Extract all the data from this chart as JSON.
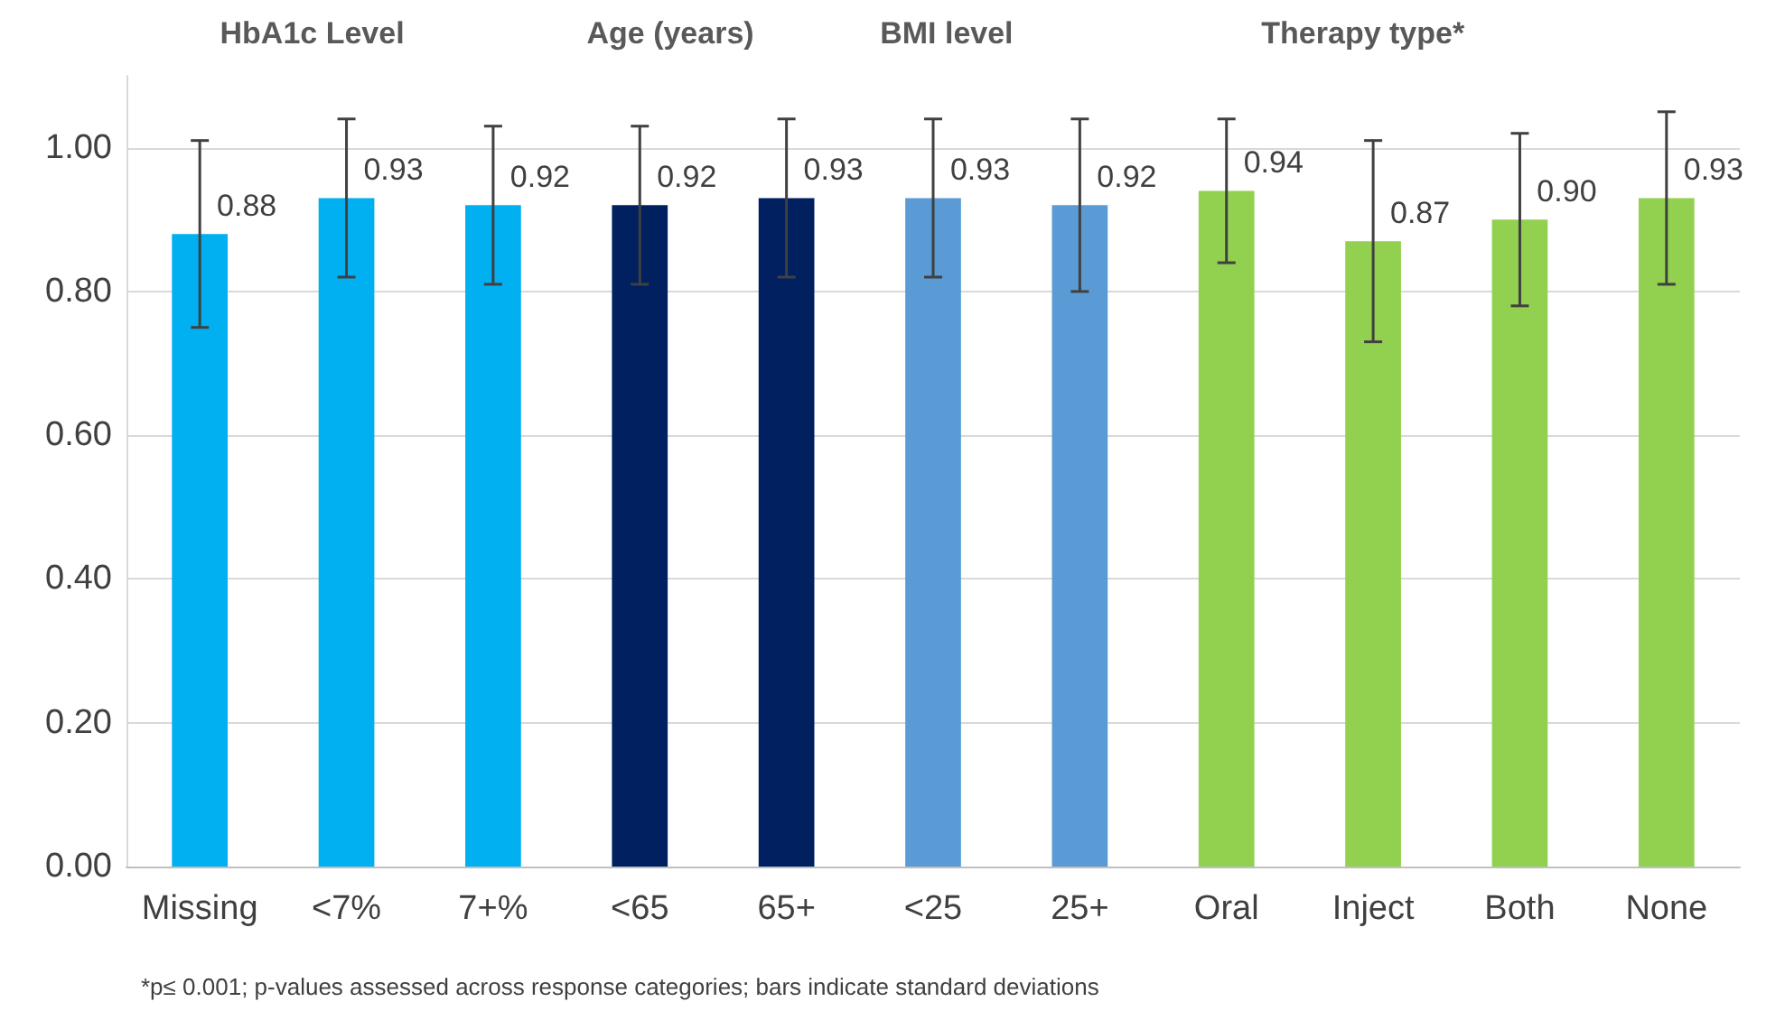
{
  "chart_data": {
    "type": "bar",
    "categories": [
      "Missing",
      "<7%",
      "7+%",
      "<65",
      "65+",
      "<25",
      "25+",
      "Oral",
      "Inject",
      "Both",
      "None"
    ],
    "values": [
      0.88,
      0.93,
      0.92,
      0.92,
      0.93,
      0.93,
      0.92,
      0.94,
      0.87,
      0.9,
      0.93
    ],
    "value_labels": [
      "0.88",
      "0.93",
      "0.92",
      "0.92",
      "0.93",
      "0.93",
      "0.92",
      "0.94",
      "0.87",
      "0.90",
      "0.93"
    ],
    "colors": [
      "#00b0f0",
      "#00b0f0",
      "#00b0f0",
      "#002060",
      "#002060",
      "#5b9bd5",
      "#5b9bd5",
      "#92d050",
      "#92d050",
      "#92d050",
      "#92d050"
    ],
    "errors": [
      [
        0.75,
        1.01
      ],
      [
        0.82,
        1.04
      ],
      [
        0.81,
        1.03
      ],
      [
        0.81,
        1.03
      ],
      [
        0.82,
        1.04
      ],
      [
        0.82,
        1.04
      ],
      [
        0.8,
        1.04
      ],
      [
        0.84,
        1.04
      ],
      [
        0.73,
        1.01
      ],
      [
        0.78,
        1.02
      ],
      [
        0.81,
        1.05
      ]
    ],
    "ylim": [
      0,
      1.1
    ],
    "yticks": [
      {
        "value": 0,
        "label": "0.00"
      },
      {
        "value": 0.2,
        "label": "0.20"
      },
      {
        "value": 0.4,
        "label": "0.40"
      },
      {
        "value": 0.6,
        "label": "0.60"
      },
      {
        "value": 0.8,
        "label": "0.80"
      },
      {
        "value": 1.0,
        "label": "1.00"
      }
    ],
    "grid": "y",
    "annotations": [
      "HbA1c Level",
      "Age (years)",
      "BMI level",
      "Therapy type*",
      "*p≤ 0.001; p-values assessed across response categories; bars indicate standard deviations"
    ]
  }
}
